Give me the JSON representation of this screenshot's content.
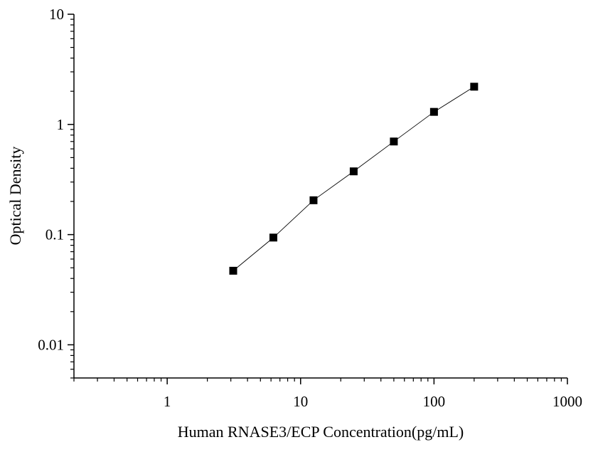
{
  "chart_data": {
    "type": "scatter",
    "title": "",
    "xlabel": "Human RNASE3/ECP Concentration(pg/mL)",
    "ylabel": "Optical Density",
    "x_scale": "log",
    "y_scale": "log",
    "xlim": [
      0.2,
      1000
    ],
    "ylim": [
      0.005,
      10
    ],
    "x_ticks": [
      {
        "value": 1,
        "label": "1"
      },
      {
        "value": 10,
        "label": "10"
      },
      {
        "value": 100,
        "label": "100"
      },
      {
        "value": 1000,
        "label": "1000"
      }
    ],
    "y_ticks": [
      {
        "value": 0.01,
        "label": "0.01"
      },
      {
        "value": 0.1,
        "label": "0.1"
      },
      {
        "value": 1,
        "label": "1"
      },
      {
        "value": 10,
        "label": "10"
      }
    ],
    "grid": false,
    "legend": "none",
    "fit_line": true,
    "series": [
      {
        "marker": "square",
        "color": "#000000",
        "points": [
          {
            "x": 3.125,
            "y": 0.047
          },
          {
            "x": 6.25,
            "y": 0.094
          },
          {
            "x": 12.5,
            "y": 0.205
          },
          {
            "x": 25,
            "y": 0.375
          },
          {
            "x": 50,
            "y": 0.7
          },
          {
            "x": 100,
            "y": 1.3
          },
          {
            "x": 200,
            "y": 2.2
          }
        ]
      }
    ]
  }
}
